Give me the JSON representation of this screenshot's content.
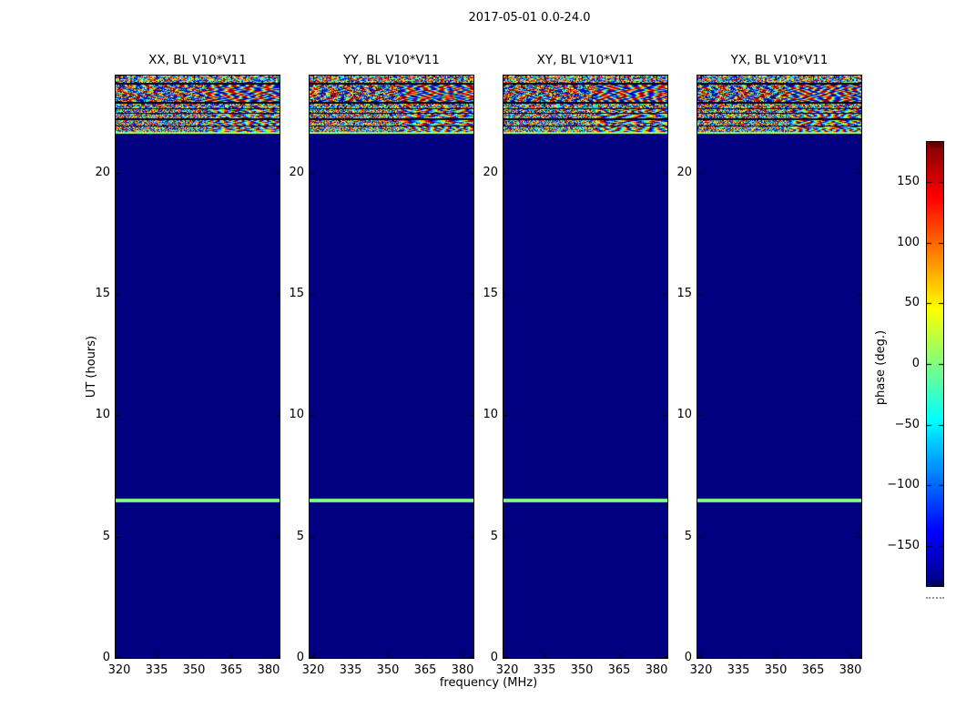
{
  "chart_data": {
    "type": "heatmap",
    "title": "2017-05-01 0.0-24.0",
    "xlabel": "frequency (MHz)",
    "ylabel": "UT (hours)",
    "colormap": "jet",
    "xlim": [
      318.5,
      384.5
    ],
    "ylim": [
      0,
      24
    ],
    "clim_deg": [
      -180,
      180
    ],
    "xticks": [
      320,
      335,
      350,
      365,
      380
    ],
    "yticks": [
      0,
      5,
      10,
      15,
      20
    ],
    "grid": false,
    "panels": [
      {
        "title": "XX, BL V10*V11",
        "pol": "XX",
        "baseline": "V10*V11"
      },
      {
        "title": "YY, BL V10*V11",
        "pol": "YY",
        "baseline": "V10*V11"
      },
      {
        "title": "XY, BL V10*V11",
        "pol": "XY",
        "baseline": "V10*V11"
      },
      {
        "title": "YX, BL V10*V11",
        "pol": "YX",
        "baseline": "V10*V11"
      }
    ],
    "features": {
      "background_phase_deg": -180,
      "background_color": "#000080",
      "green_line": {
        "ut_hours": 6.5,
        "phase_deg": 0,
        "color": "#80ff80"
      },
      "noise_band": {
        "ut_start": 21.6,
        "ut_end": 24.0,
        "description": "random phase noise -180..180 deg with horizontal striping and dark scan lines"
      }
    },
    "colorbar": {
      "label": "phase (deg.)",
      "ticks": [
        150,
        100,
        50,
        0,
        -50,
        -100,
        -150
      ],
      "tick_labels": [
        "150",
        "100",
        "50",
        "0",
        "−50",
        "−100",
        "−150"
      ]
    }
  }
}
